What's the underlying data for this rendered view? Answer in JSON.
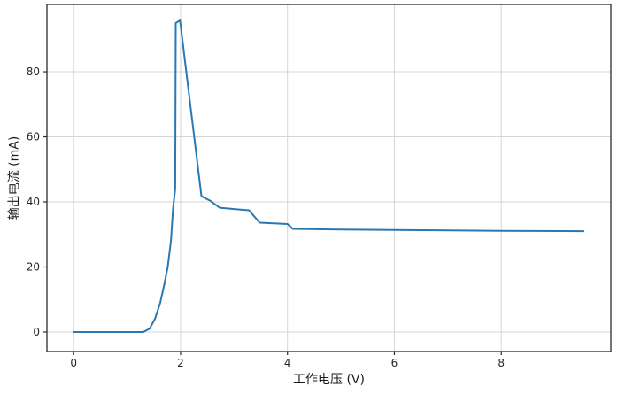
{
  "figure": {
    "background_color": "#ffffff",
    "title": ""
  },
  "chart_data": {
    "type": "line",
    "title": "",
    "xlabel": "工作电压 (V)",
    "ylabel": "输出电流 (mA)",
    "legend": null,
    "grid": true,
    "grid_color": "#d6d6d6",
    "spine_color": "#2b2b2b",
    "tick_color": "#2b2b2b",
    "line_color": "#2878b4",
    "x_ticks": [
      0,
      2,
      4,
      6,
      8
    ],
    "y_ticks": [
      0,
      20,
      40,
      60,
      80
    ],
    "xlim": [
      -0.5,
      10.05
    ],
    "ylim": [
      -6,
      100.7
    ],
    "series": [
      {
        "name": "输出电流",
        "x": [
          0.0,
          1.3,
          1.42,
          1.52,
          1.62,
          1.7,
          1.76,
          1.82,
          1.86,
          1.9,
          1.91,
          1.99,
          2.39,
          2.44,
          2.56,
          2.73,
          3.0,
          3.28,
          3.48,
          4.0,
          4.1,
          5.0,
          6.5,
          8.0,
          9.54
        ],
        "y": [
          0.0,
          0.0,
          1.0,
          4.0,
          9.0,
          15.0,
          20.0,
          28.0,
          38.0,
          44.0,
          95.0,
          95.8,
          41.8,
          41.3,
          40.3,
          38.2,
          37.8,
          37.4,
          33.6,
          33.2,
          31.7,
          31.5,
          31.3,
          31.1,
          31.0
        ]
      }
    ]
  }
}
